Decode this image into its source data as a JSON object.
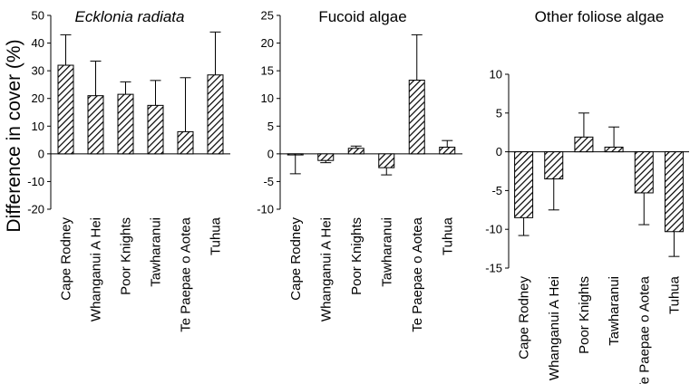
{
  "figure": {
    "ylabel": "Difference in cover (%)"
  },
  "chart_data": [
    {
      "type": "bar",
      "title": "Ecklonia radiata",
      "title_style": "italic",
      "ylabel": "Difference in cover (%)",
      "ylim": [
        -20,
        50
      ],
      "yticks": [
        -20,
        -10,
        0,
        10,
        20,
        30,
        40,
        50
      ],
      "categories": [
        "Cape Rodney",
        "Whanganui A Hei",
        "Poor Knights",
        "Tawharanui",
        "Te Paepae o Aotea",
        "Tuhua"
      ],
      "values": [
        32,
        21,
        21.5,
        17.5,
        8,
        28.5
      ],
      "errors": [
        11,
        12.5,
        4.5,
        9,
        19.5,
        15.5
      ],
      "fill": "diagonal-hatch",
      "grid": false
    },
    {
      "type": "bar",
      "title": "Fucoid algae",
      "ylim": [
        -10,
        25
      ],
      "yticks": [
        -10,
        -5,
        0,
        5,
        10,
        15,
        20,
        25
      ],
      "categories": [
        "Cape Rodney",
        "Whanganui A Hei",
        "Poor Knights",
        "Tawharanui",
        "Te Paepae o Aotea",
        "Tuhua"
      ],
      "values": [
        -0.2,
        -1.2,
        1,
        -2.5,
        13.3,
        1.2
      ],
      "errors": [
        3.4,
        0.4,
        0.4,
        1.3,
        8.2,
        1.2
      ],
      "fill": "diagonal-hatch",
      "grid": false
    },
    {
      "type": "bar",
      "title": "Other foliose algae",
      "ylim": [
        -15,
        10
      ],
      "yticks": [
        -15,
        -10,
        -5,
        0,
        5,
        10
      ],
      "categories": [
        "Cape Rodney",
        "Whanganui A Hei",
        "Poor Knights",
        "Tawharanui",
        "Te Paepae o Aotea",
        "Tuhua"
      ],
      "values": [
        -8.5,
        -3.5,
        1.9,
        0.6,
        -5.3,
        -10.3
      ],
      "errors": [
        2.3,
        4,
        3.1,
        2.6,
        4.1,
        3.2
      ],
      "fill": "diagonal-hatch",
      "grid": false
    }
  ]
}
